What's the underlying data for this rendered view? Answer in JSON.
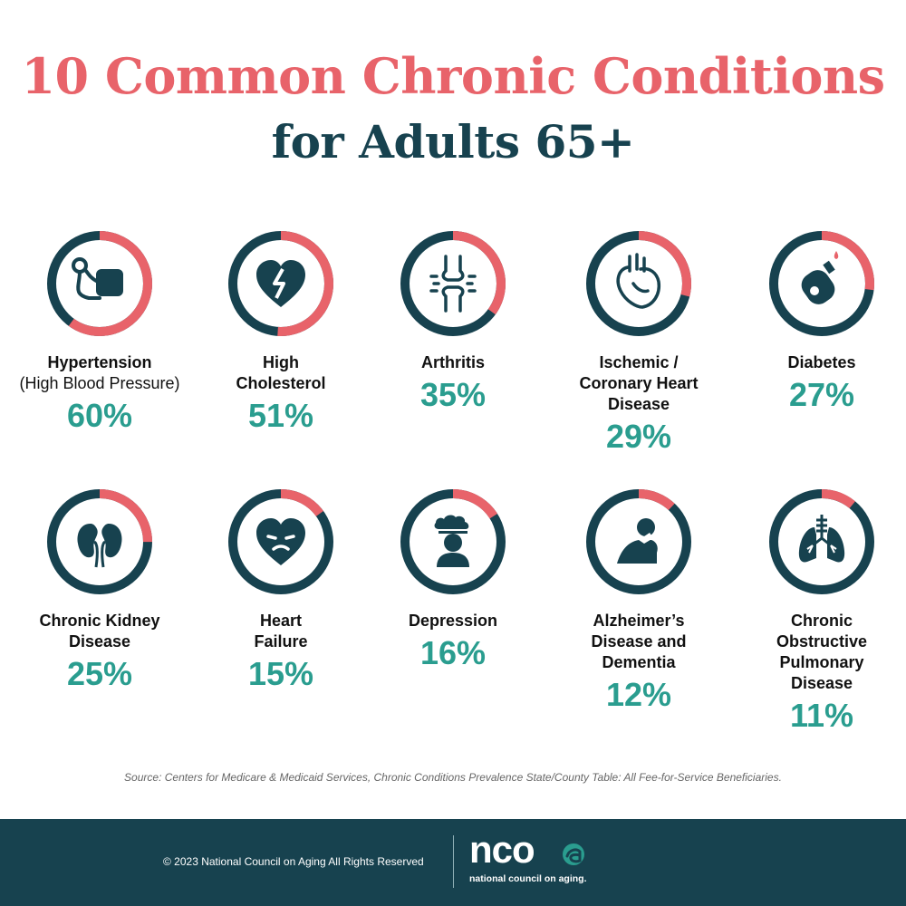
{
  "title_line1": "10 Common Chronic Conditions",
  "title_line2": "for Adults 65+",
  "colors": {
    "ring_base": "#17424f",
    "ring_value": "#e8636a",
    "percent": "#2a9d8f",
    "title_accent": "#e8636a"
  },
  "chart_data": {
    "type": "pie",
    "title": "10 Common Chronic Conditions for Adults 65+",
    "categories": [
      "Hypertension (High Blood Pressure)",
      "High Cholesterol",
      "Arthritis",
      "Ischemic / Coronary Heart Disease",
      "Diabetes",
      "Chronic Kidney Disease",
      "Heart Failure",
      "Depression",
      "Alzheimer's Disease and Dementia",
      "Chronic Obstructive Pulmonary Disease"
    ],
    "values": [
      60,
      51,
      35,
      29,
      27,
      25,
      15,
      16,
      12,
      11
    ],
    "unit": "%"
  },
  "conditions": [
    {
      "label": "Hypertension",
      "sub": "(High Blood Pressure)",
      "pct": "60%",
      "value": 60,
      "icon": "blood-pressure-monitor-icon"
    },
    {
      "label": "High Cholesterol",
      "sub": "",
      "pct": "51%",
      "value": 51,
      "icon": "broken-heart-icon"
    },
    {
      "label": "Arthritis",
      "sub": "",
      "pct": "35%",
      "value": 35,
      "icon": "knee-joint-icon"
    },
    {
      "label": "Ischemic / Coronary Heart Disease",
      "sub": "",
      "pct": "29%",
      "value": 29,
      "icon": "heart-organ-icon"
    },
    {
      "label": "Diabetes",
      "sub": "",
      "pct": "27%",
      "value": 27,
      "icon": "glucose-meter-icon"
    },
    {
      "label": "Chronic Kidney Disease",
      "sub": "",
      "pct": "25%",
      "value": 25,
      "icon": "kidneys-icon"
    },
    {
      "label": "Heart Failure",
      "sub": "",
      "pct": "15%",
      "value": 15,
      "icon": "sad-heart-icon"
    },
    {
      "label": "Depression",
      "sub": "",
      "pct": "16%",
      "value": 16,
      "icon": "person-rain-cloud-icon"
    },
    {
      "label": "Alzheimer’s Disease and Dementia",
      "sub": "",
      "pct": "12%",
      "value": 12,
      "icon": "head-in-hand-icon"
    },
    {
      "label": "Chronic Obstructive Pulmonary Disease",
      "sub": "",
      "pct": "11%",
      "value": 11,
      "icon": "lungs-icon"
    }
  ],
  "source": "Source: Centers for Medicare & Medicaid Services, Chronic Conditions Prevalence State/County Table: All Fee-for-Service Beneficiaries.",
  "footer": {
    "copyright": "© 2023 National Council on Aging All Rights Reserved",
    "logo_word": "nco",
    "logo_sub": "national council on aging."
  }
}
